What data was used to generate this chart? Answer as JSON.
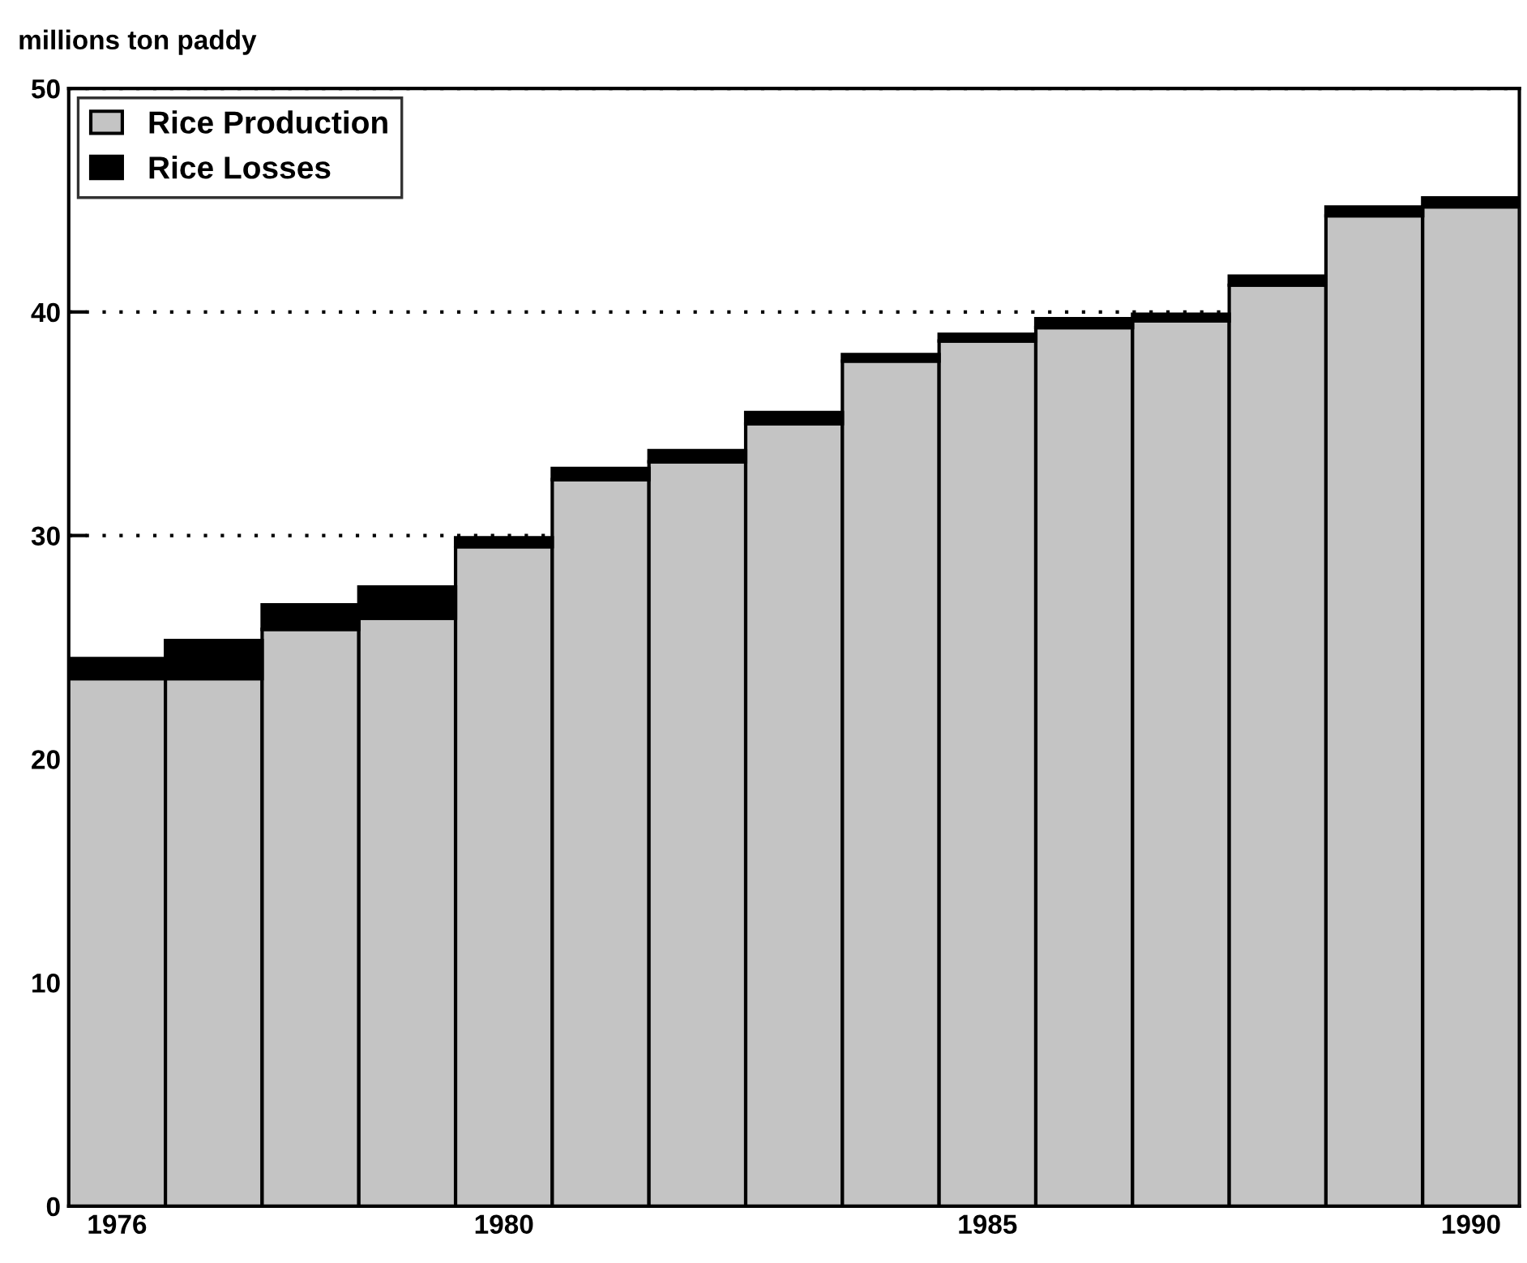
{
  "chart_data": {
    "type": "bar",
    "ylabel": "millions ton paddy",
    "stacked": true,
    "categories": [
      "1976",
      null,
      null,
      null,
      "1980",
      null,
      null,
      null,
      null,
      "1985",
      null,
      null,
      null,
      null,
      "1990"
    ],
    "series": [
      {
        "name": "Rice Production",
        "color": "#c4c4c4",
        "values": [
          23.6,
          23.6,
          25.8,
          26.3,
          29.5,
          32.5,
          33.3,
          35.0,
          37.8,
          38.7,
          39.3,
          39.6,
          41.2,
          44.3,
          44.7
        ]
      },
      {
        "name": "Rice Losses",
        "color": "#000000",
        "values": [
          0.9,
          1.7,
          1.1,
          1.4,
          0.4,
          0.5,
          0.5,
          0.5,
          0.3,
          0.3,
          0.4,
          0.3,
          0.4,
          0.4,
          0.4
        ]
      }
    ],
    "ylim": [
      0,
      50
    ],
    "yticks": [
      0,
      10,
      20,
      30,
      40,
      50
    ],
    "grid": "y",
    "legend": "top left"
  }
}
